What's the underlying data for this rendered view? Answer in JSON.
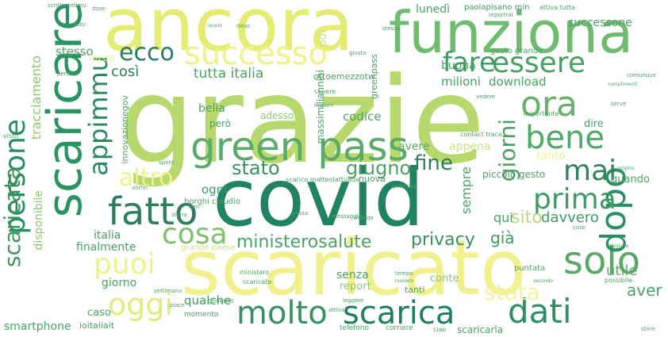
{
  "words": [
    {
      "text": "grazie",
      "color": "#b6d86d"
    },
    {
      "text": "covid",
      "color": "#218461"
    },
    {
      "text": "scaricato",
      "color": "#f2f08e"
    },
    {
      "text": "ancora",
      "color": "#e5ec72"
    },
    {
      "text": "funziona",
      "color": "#6fbb70"
    },
    {
      "text": "scaricare",
      "color": "#2b9363"
    },
    {
      "text": "green pass",
      "color": "#5aab69"
    },
    {
      "text": "successo",
      "color": "#eef287"
    },
    {
      "text": "persone",
      "color": "#219063"
    },
    {
      "text": "fatto",
      "color": "#2d7e5a"
    },
    {
      "text": "molto",
      "color": "#3a8f60"
    },
    {
      "text": "scarica",
      "color": "#207e5b"
    },
    {
      "text": "dati",
      "color": "#2e8f60"
    },
    {
      "text": "solo",
      "color": "#5aa865"
    },
    {
      "text": "dopo",
      "color": "#2a8f63"
    },
    {
      "text": "ora",
      "color": "#6bb06d"
    },
    {
      "text": "bene",
      "color": "#50a868"
    },
    {
      "text": "essere",
      "color": "#48a064"
    },
    {
      "text": "fare",
      "color": "#3d9a64"
    },
    {
      "text": "mai",
      "color": "#2f845e"
    },
    {
      "text": "prima",
      "color": "#3f9a63"
    },
    {
      "text": "oggi",
      "color": "#e2ec7a"
    },
    {
      "text": "cosa",
      "color": "#7fbf70"
    },
    {
      "text": "puoi",
      "color": "#eef289"
    },
    {
      "text": "altro",
      "color": "#eef28a"
    },
    {
      "text": "stata",
      "color": "#f2f3a0"
    },
    {
      "text": "scaricata",
      "color": "#40935f"
    },
    {
      "text": "appimmu",
      "color": "#2b8a5d"
    },
    {
      "text": "ecco",
      "color": "#2a7d59"
    },
    {
      "text": "giorni",
      "color": "#4e9f63"
    },
    {
      "text": "fine",
      "color": "#2c7e5a"
    },
    {
      "text": "stato",
      "color": "#3c8f60"
    },
    {
      "text": "giugno",
      "color": "#4fa064"
    },
    {
      "text": "privacy",
      "color": "#3a8f60"
    },
    {
      "text": "ministerosalute",
      "color": "#4ca264"
    },
    {
      "text": "tutta italia",
      "color": "#4ca264"
    },
    {
      "text": "così",
      "color": "#2e7f5a"
    },
    {
      "text": "tracciamento",
      "color": "#8cc672"
    },
    {
      "text": "disponibile",
      "color": "#8cc672"
    },
    {
      "text": "sito",
      "color": "#b4dc7a"
    },
    {
      "text": "davvero",
      "color": "#3e9a63"
    },
    {
      "text": "aver",
      "color": "#4ea265"
    },
    {
      "text": "utile",
      "color": "#5aab69"
    },
    {
      "text": "già",
      "color": "#3e9a63"
    },
    {
      "text": "qui",
      "color": "#4ca264"
    },
    {
      "text": "sempre",
      "color": "#4ea265"
    },
    {
      "text": "appena",
      "color": "#c9e37e"
    },
    {
      "text": "tanto",
      "color": "#eef29a"
    },
    {
      "text": "avere",
      "color": "#5aab69"
    },
    {
      "text": "codice",
      "color": "#4ca264"
    },
    {
      "text": "download",
      "color": "#4ca264"
    },
    {
      "text": "milioni",
      "color": "#4ca264"
    },
    {
      "text": "buona",
      "color": "#4ca264"
    },
    {
      "text": "successone",
      "color": "#4ca264"
    },
    {
      "text": "lunedì",
      "color": "#4ca264"
    },
    {
      "text": "paolapisano min",
      "color": "#3e9a63"
    },
    {
      "text": "massimiliannini",
      "color": "#4ca264"
    },
    {
      "text": "ottoemezzotw",
      "color": "#4ca264"
    },
    {
      "text": "greenpass",
      "color": "#4ca264"
    },
    {
      "text": "poi",
      "color": "#c9e37e"
    },
    {
      "text": "stesso",
      "color": "#4ca264"
    },
    {
      "text": "basta",
      "color": "#eef29a"
    },
    {
      "text": "bella",
      "color": "#4ca264"
    },
    {
      "text": "però",
      "color": "#4ca264"
    },
    {
      "text": "adesso",
      "color": "#8cc672"
    },
    {
      "text": "ogni",
      "color": "#3e9a63"
    },
    {
      "text": "italia",
      "color": "#4ca264"
    },
    {
      "text": "finalmente",
      "color": "#4ca264"
    },
    {
      "text": "giorno",
      "color": "#4ca264"
    },
    {
      "text": "qualche",
      "color": "#3e9a63"
    },
    {
      "text": "senza",
      "color": "#4ca264"
    },
    {
      "text": "report",
      "color": "#8cc672"
    },
    {
      "text": "conte",
      "color": "#8cc672"
    },
    {
      "text": "tanti",
      "color": "#4ca264"
    },
    {
      "text": "caso",
      "color": "#4ca264"
    },
    {
      "text": "smartphone",
      "color": "#4ca264"
    },
    {
      "text": "ioitaliait",
      "color": "#4ca264"
    },
    {
      "text": "scaricarla",
      "color": "#4ca264"
    },
    {
      "text": "dire",
      "color": "#4ca264"
    },
    {
      "text": "quando",
      "color": "#4ca264"
    },
    {
      "text": "innovazionegov",
      "color": "#4ca264"
    },
    {
      "text": "borghi claudio",
      "color": "#4ca264"
    },
    {
      "text": "grande paese",
      "color": "#c9e37e"
    },
    {
      "text": "piccolo gesto",
      "color": "#4ca264"
    },
    {
      "text": "gesto grande",
      "color": "#4ca264"
    },
    {
      "text": "nuova",
      "color": "#4ca264"
    },
    {
      "text": "puntata",
      "color": "#4ca264"
    },
    {
      "text": "possibile",
      "color": "#4ca264"
    },
    {
      "text": "importante",
      "color": "#4ca264"
    },
    {
      "text": "contact trace",
      "color": "#4ca264"
    },
    {
      "text": "scarico matteolattuada",
      "color": "#4ca264"
    },
    {
      "text": "ministero",
      "color": "#4ca264"
    },
    {
      "text": "scaricate",
      "color": "#4ca264"
    },
    {
      "text": "momento",
      "color": "#4ca264"
    },
    {
      "text": "telefono",
      "color": "#4ca264"
    },
    {
      "text": "governo",
      "color": "#4ca264"
    },
    {
      "text": "corriere",
      "color": "#4ca264"
    },
    {
      "text": "ciao",
      "color": "#4ca264"
    },
    {
      "text": "scritto",
      "color": "#4ca264"
    },
    {
      "text": "ottimo",
      "color": "#4ca264"
    },
    {
      "text": "dose",
      "color": "#4ca264"
    },
    {
      "text": "devo",
      "color": "#4ca264"
    },
    {
      "text": "lavoro",
      "color": "#4ca264"
    },
    {
      "text": "stessa",
      "color": "#4ca264"
    },
    {
      "text": "sapere",
      "color": "#4ca264"
    },
    {
      "text": "regioni",
      "color": "#4ca264"
    },
    {
      "text": "vedere",
      "color": "#4ca264"
    },
    {
      "text": "giusto",
      "color": "#4ca264"
    },
    {
      "text": "comunque",
      "color": "#4ca264"
    },
    {
      "text": "visto",
      "color": "#4ca264"
    },
    {
      "text": "penso",
      "color": "#4ca264"
    },
    {
      "text": "storia",
      "color": "#4ca264"
    },
    {
      "text": "vorrei",
      "color": "#4ca264"
    },
    {
      "text": "ben",
      "color": "#4ca264"
    },
    {
      "text": "spero",
      "color": "#4ca264"
    },
    {
      "text": "qualcuno",
      "color": "#4ca264"
    },
    {
      "text": "possa",
      "color": "#4ca264"
    },
    {
      "text": "messaggio",
      "color": "#4ca264"
    },
    {
      "text": "ricordo",
      "color": "#4ca264"
    },
    {
      "text": "tempo",
      "color": "#4ca264"
    },
    {
      "text": "numero",
      "color": "#4ca264"
    },
    {
      "text": "leggere",
      "color": "#4ca264"
    },
    {
      "text": "attiva",
      "color": "#4ca264"
    },
    {
      "text": "piace",
      "color": "#4ca264"
    },
    {
      "text": "settimana",
      "color": "#4ca264"
    },
    {
      "text": "dato",
      "color": "#4ca264"
    },
    {
      "text": "serve",
      "color": "#4ca264"
    },
    {
      "text": "store",
      "color": "#4ca264"
    },
    {
      "text": "proprio",
      "color": "#4ca264"
    },
    {
      "text": "cose",
      "color": "#4ca264"
    },
    {
      "text": "attiva tutta",
      "color": "#4ca264"
    },
    {
      "text": "reportrai",
      "color": "#4ca264"
    },
    {
      "text": "migliore",
      "color": "#4ca264"
    },
    {
      "text": "complimenti",
      "color": "#4ca264"
    },
    {
      "text": "secondo",
      "color": "#4ca264"
    }
  ]
}
